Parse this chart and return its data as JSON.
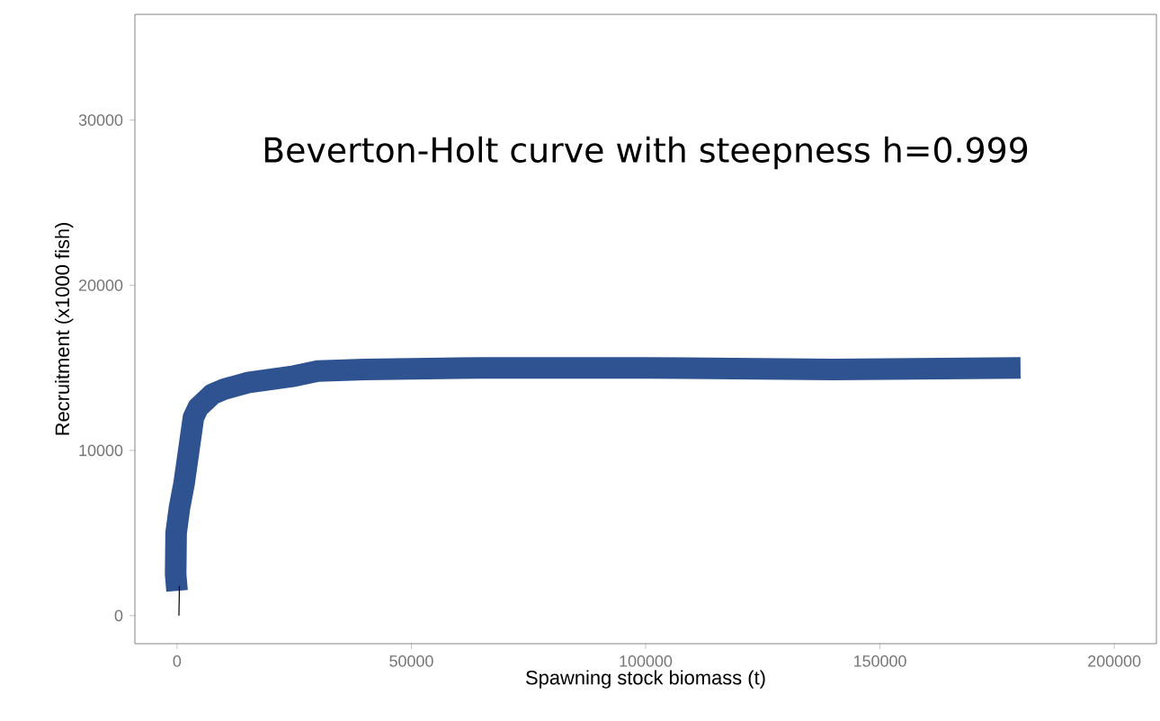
{
  "chart_data": {
    "type": "line",
    "title": "Beverton-Holt curve with steepness h=0.999",
    "xlabel": "Spawning stock biomass (t)",
    "ylabel": "Recruitment (x1000 fish)",
    "xlim": [
      -9000,
      209000
    ],
    "ylim": [
      -1700,
      36400
    ],
    "xticks": [
      0,
      50000,
      100000,
      150000,
      200000
    ],
    "yticks": [
      0,
      10000,
      20000,
      30000
    ],
    "grid": false,
    "marker": "none",
    "line_style": "solid",
    "series": [
      {
        "color": "#2f5391",
        "x": [
          0,
          -300,
          -200,
          500,
          1500,
          2500,
          3500,
          4500,
          6000,
          7500,
          10000,
          15000,
          20000,
          25000,
          30000,
          40000,
          65000,
          100000,
          140000,
          180000
        ],
        "values": [
          1500,
          2500,
          5000,
          6500,
          8000,
          10000,
          12000,
          12600,
          13000,
          13400,
          13700,
          14100,
          14300,
          14500,
          14800,
          14900,
          15000,
          15000,
          14900,
          15000
        ]
      },
      {
        "color": "#000000",
        "x": [
          400,
          500
        ],
        "values": [
          0,
          1800
        ]
      }
    ]
  }
}
